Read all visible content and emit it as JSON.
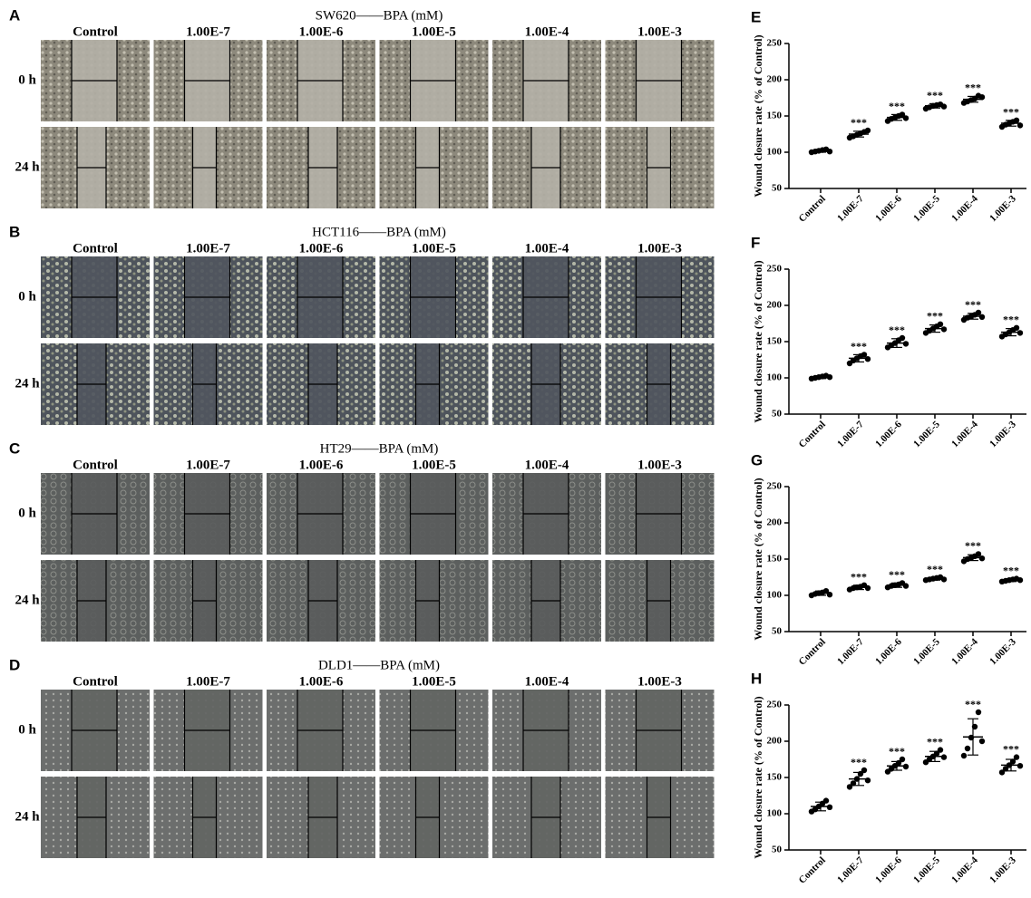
{
  "panels": [
    {
      "label": "A",
      "title": "SW620——BPA (mM)",
      "columns": [
        "Control",
        "1.00E-7",
        "1.00E-6",
        "1.00E-5",
        "1.00E-4",
        "1.00E-3"
      ],
      "rows": [
        "0 h",
        "24 h"
      ]
    },
    {
      "label": "B",
      "title": "HCT116——BPA (mM)",
      "columns": [
        "Control",
        "1.00E-7",
        "1.00E-6",
        "1.00E-5",
        "1.00E-4",
        "1.00E-3"
      ],
      "rows": [
        "0 h",
        "24 h"
      ]
    },
    {
      "label": "C",
      "title": "HT29——BPA (mM)",
      "columns": [
        "Control",
        "1.00E-7",
        "1.00E-6",
        "1.00E-5",
        "1.00E-4",
        "1.00E-3"
      ],
      "rows": [
        "0 h",
        "24 h"
      ]
    },
    {
      "label": "D",
      "title": "DLD1——BPA (mM)",
      "columns": [
        "Control",
        "1.00E-7",
        "1.00E-6",
        "1.00E-5",
        "1.00E-4",
        "1.00E-3"
      ],
      "rows": [
        "0 h",
        "24 h"
      ]
    }
  ],
  "chart_data": [
    {
      "type": "dot",
      "panel_label": "E",
      "y_label": "Wound closure rate (% of Control)",
      "categories": [
        "Control",
        "1.00E-7",
        "1.00E-6",
        "1.00E-5",
        "1.00E-4",
        "1.00E-3"
      ],
      "points": [
        [
          100,
          101,
          102,
          103,
          104,
          101
        ],
        [
          120,
          122,
          124,
          126,
          128,
          130
        ],
        [
          143,
          146,
          148,
          150,
          152,
          147
        ],
        [
          160,
          162,
          164,
          165,
          166,
          163
        ],
        [
          168,
          170,
          172,
          174,
          178,
          176
        ],
        [
          135,
          138,
          140,
          142,
          144,
          137
        ]
      ],
      "means": [
        102,
        125,
        148,
        164,
        173,
        140
      ],
      "sd": [
        2,
        4,
        4,
        3,
        4,
        4
      ],
      "annotations": [
        null,
        "***",
        "***",
        "***",
        "***",
        "***"
      ],
      "ylim": [
        50,
        250
      ],
      "yticks": [
        50,
        100,
        150,
        200,
        250
      ],
      "color": "#000000"
    },
    {
      "type": "dot",
      "panel_label": "F",
      "y_label": "Wound closure rate (% of Control)",
      "categories": [
        "Control",
        "1.00E-7",
        "1.00E-6",
        "1.00E-5",
        "1.00E-4",
        "1.00E-3"
      ],
      "points": [
        [
          99,
          100,
          101,
          102,
          103,
          101
        ],
        [
          120,
          124,
          127,
          130,
          132,
          126
        ],
        [
          142,
          145,
          148,
          152,
          155,
          147
        ],
        [
          162,
          165,
          168,
          171,
          174,
          167
        ],
        [
          180,
          183,
          185,
          187,
          190,
          184
        ],
        [
          157,
          160,
          163,
          166,
          169,
          162
        ]
      ],
      "means": [
        101,
        127,
        148,
        168,
        185,
        163
      ],
      "sd": [
        2,
        5,
        6,
        5,
        4,
        5
      ],
      "annotations": [
        null,
        "***",
        "***",
        "***",
        "***",
        "***"
      ],
      "ylim": [
        50,
        250
      ],
      "yticks": [
        50,
        100,
        150,
        200,
        250
      ],
      "color": "#000000"
    },
    {
      "type": "dot",
      "panel_label": "G",
      "y_label": "Wound closure rate (% of Control)",
      "categories": [
        "Control",
        "1.00E-7",
        "1.00E-6",
        "1.00E-5",
        "1.00E-4",
        "1.00E-3"
      ],
      "points": [
        [
          100,
          102,
          103,
          104,
          106,
          101
        ],
        [
          108,
          110,
          111,
          112,
          114,
          110
        ],
        [
          111,
          113,
          114,
          115,
          117,
          113
        ],
        [
          121,
          122,
          123,
          124,
          125,
          122
        ],
        [
          147,
          150,
          152,
          154,
          157,
          151
        ],
        [
          119,
          120,
          121,
          122,
          123,
          121
        ]
      ],
      "means": [
        103,
        111,
        114,
        123,
        152,
        121
      ],
      "sd": [
        3,
        3,
        3,
        2,
        4,
        2
      ],
      "annotations": [
        null,
        "***",
        "***",
        "***",
        "***",
        "***"
      ],
      "ylim": [
        50,
        250
      ],
      "yticks": [
        50,
        100,
        150,
        200,
        250
      ],
      "color": "#000000"
    },
    {
      "type": "dot",
      "panel_label": "H",
      "y_label": "Wound closure rate (% of Control)",
      "categories": [
        "Control",
        "1.00E-7",
        "1.00E-6",
        "1.00E-5",
        "1.00E-4",
        "1.00E-3"
      ],
      "points": [
        [
          103,
          106,
          110,
          114,
          118,
          109
        ],
        [
          137,
          142,
          148,
          155,
          160,
          146
        ],
        [
          158,
          162,
          166,
          170,
          175,
          165
        ],
        [
          171,
          175,
          179,
          183,
          188,
          178
        ],
        [
          180,
          190,
          205,
          220,
          240,
          200
        ],
        [
          157,
          162,
          167,
          172,
          178,
          166
        ]
      ],
      "means": [
        110,
        148,
        166,
        179,
        206,
        167
      ],
      "sd": [
        6,
        9,
        6,
        7,
        25,
        8
      ],
      "annotations": [
        null,
        "***",
        "***",
        "***",
        "***",
        "***"
      ],
      "ylim": [
        50,
        250
      ],
      "yticks": [
        50,
        100,
        150,
        200,
        250
      ],
      "color": "#000000"
    }
  ]
}
